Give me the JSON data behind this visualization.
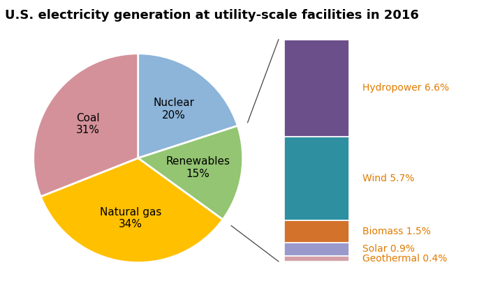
{
  "title": "U.S. electricity generation at utility-scale facilities in 2016",
  "pie_labels": [
    "Nuclear\n20%",
    "Renewables\n15%",
    "Natural gas\n34%",
    "Coal\n31%"
  ],
  "pie_values": [
    20,
    15,
    34,
    31
  ],
  "pie_colors": [
    "#8db4d9",
    "#93c572",
    "#ffc000",
    "#d4919a"
  ],
  "pie_startangle": 90,
  "renewables_breakdown": [
    {
      "label": "Geothermal 0.4%",
      "value": 0.4,
      "color": "#d4a0a8"
    },
    {
      "label": "Solar 0.9%",
      "value": 0.9,
      "color": "#9999cc"
    },
    {
      "label": "Biomass 1.5%",
      "value": 1.5,
      "color": "#d2722b"
    },
    {
      "label": "Wind 5.7%",
      "value": 5.7,
      "color": "#2e8fa0"
    },
    {
      "label": "Hydropower 6.6%",
      "value": 6.6,
      "color": "#6b4f8a"
    }
  ],
  "title_fontsize": 13,
  "label_fontsize": 11,
  "bar_fontsize": 10,
  "text_color": "#e07b00"
}
